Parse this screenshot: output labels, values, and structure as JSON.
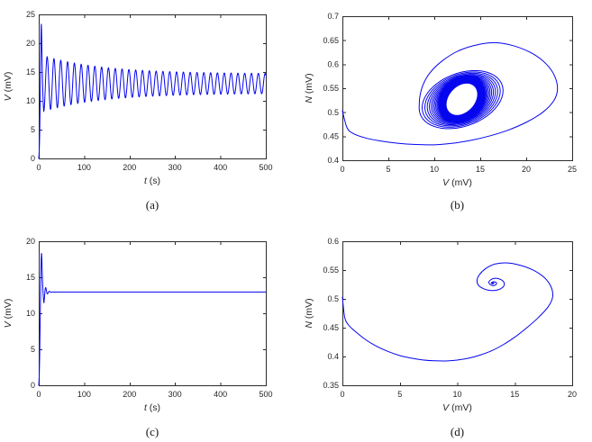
{
  "figure": {
    "background": "#ffffff",
    "line_color": "#0505ee",
    "axis_color": "#2b2b2b",
    "tick_label_color": "#262626",
    "caption_color": "#151515"
  },
  "chart_data": [
    {
      "caption": "(a)",
      "type": "line",
      "xlabel_var": "t",
      "xlabel_unit": " (s)",
      "ylabel_var": "V",
      "ylabel_unit": " (mV)",
      "xlim": [
        0,
        500
      ],
      "ylim": [
        0,
        25
      ],
      "xticks": [
        0,
        100,
        200,
        300,
        400,
        500
      ],
      "yticks": [
        0,
        5,
        10,
        15,
        20,
        25
      ],
      "grid": false,
      "legend": null,
      "key_points": {
        "start": [
          0,
          0
        ],
        "initial_peak": [
          6,
          23.3
        ],
        "first_minimum": [
          11,
          8.15
        ],
        "steady_mean_V": 13.0,
        "steady_oscillation_amplitude": 1.7,
        "oscillation_period_s": 15
      },
      "series": [
        {
          "name": "V(t) sustained oscillation",
          "segments": [
            {
              "type": "points",
              "pts": [
                [
                  0,
                  0
                ],
                [
                  1,
                  1.2
                ],
                [
                  2,
                  4
                ],
                [
                  3,
                  9.5
                ],
                [
                  4,
                  16
                ],
                [
                  5,
                  21.5
                ],
                [
                  5.7,
                  23.3
                ],
                [
                  6.5,
                  21
                ],
                [
                  7.5,
                  16.5
                ],
                [
                  8.8,
                  12
                ],
                [
                  10,
                  9.4
                ],
                [
                  11,
                  8.15
                ]
              ]
            },
            {
              "type": "osc",
              "t0": 11,
              "t1": 500,
              "dt": 0.75,
              "mean": 13.0,
              "a0": 4.85,
              "aInf": 1.7,
              "tau": 130,
              "period": 15,
              "phaseDeg": -90
            }
          ]
        }
      ]
    },
    {
      "caption": "(b)",
      "type": "line",
      "xlabel_var": "V",
      "xlabel_unit": " (mV)",
      "ylabel_var": "N",
      "ylabel_unit": " (mV)",
      "xlim": [
        0,
        25
      ],
      "ylim": [
        0.4,
        0.7
      ],
      "xticks": [
        0,
        5,
        10,
        15,
        20,
        25
      ],
      "yticks": [
        0.4,
        0.45,
        0.5,
        0.55,
        0.6,
        0.65,
        0.7
      ],
      "grid": false,
      "legend": null,
      "key_points": {
        "start": [
          0,
          0.5
        ],
        "max_V": 23.4,
        "max_N": 0.645,
        "min_N": 0.433,
        "limit_cycle_center": [
          13,
          0.527
        ],
        "limit_cycle_V_amplitude": 1.65
      },
      "series": [
        {
          "name": "phase portrait spiraling onto limit cycle",
          "segments": [
            {
              "type": "points",
              "pts": [
                [
                  0,
                  0.503
                ],
                [
                  0.5,
                  0.468
                ],
                [
                  1.2,
                  0.4555
                ],
                [
                  2.5,
                  0.4465
                ],
                [
                  4,
                  0.4405
                ],
                [
                  6,
                  0.4355
                ],
                [
                  8,
                  0.4328
                ],
                [
                  10,
                  0.4322
                ],
                [
                  12,
                  0.4355
                ],
                [
                  14,
                  0.4415
                ],
                [
                  16,
                  0.4505
                ],
                [
                  18,
                  0.4625
                ],
                [
                  20,
                  0.479
                ],
                [
                  21.8,
                  0.5
                ],
                [
                  23,
                  0.524
                ],
                [
                  23.4,
                  0.548
                ],
                [
                  23.1,
                  0.575
                ],
                [
                  22.2,
                  0.6
                ],
                [
                  20.7,
                  0.622
                ],
                [
                  18.7,
                  0.638
                ],
                [
                  16.8,
                  0.6448
                ],
                [
                  14.8,
                  0.641
                ],
                [
                  12.7,
                  0.6285
                ],
                [
                  10.9,
                  0.6075
                ],
                [
                  9.5,
                  0.5815
                ],
                [
                  8.75,
                  0.556
                ],
                [
                  8.42,
                  0.5315
                ],
                [
                  8.35,
                  0.5078
                ]
              ]
            },
            {
              "type": "spiral",
              "cx": 13,
              "cy": 0.527,
              "startDeg": 180,
              "turns": 33,
              "stepDeg": 7.5,
              "ax0": 4.65,
              "axInf": 1.65,
              "ay0": 0.062,
              "ayInf": 0.033,
              "tau": 130,
              "period": 15,
              "psiDeg": 18
            }
          ]
        }
      ]
    },
    {
      "caption": "(c)",
      "type": "line",
      "xlabel_var": "t",
      "xlabel_unit": " (s)",
      "ylabel_var": "V",
      "ylabel_unit": " (mV)",
      "xlim": [
        0,
        500
      ],
      "ylim": [
        0,
        20
      ],
      "xticks": [
        0,
        100,
        200,
        300,
        400,
        500
      ],
      "yticks": [
        0,
        5,
        10,
        15,
        20
      ],
      "grid": false,
      "legend": null,
      "key_points": {
        "start": [
          0,
          0
        ],
        "initial_peak": [
          6,
          18.3
        ],
        "first_minimum": [
          11.5,
          11.45
        ],
        "steady_state_V": 12.95
      },
      "series": [
        {
          "name": "V(t) damped to steady state",
          "segments": [
            {
              "type": "points",
              "pts": [
                [
                  0,
                  0
                ],
                [
                  1,
                  1.2
                ],
                [
                  2,
                  4
                ],
                [
                  3.5,
                  10.5
                ],
                [
                  5,
                  16.5
                ],
                [
                  6,
                  18.3
                ],
                [
                  7,
                  17.2
                ],
                [
                  8,
                  15
                ],
                [
                  9.5,
                  12.9
                ],
                [
                  10.7,
                  11.8
                ],
                [
                  11.5,
                  11.45
                ]
              ]
            },
            {
              "type": "osc",
              "t0": 11.5,
              "t1": 500,
              "dt": 0.75,
              "mean": 12.95,
              "a0": 1.5,
              "aInf": 0,
              "tau": 4.5,
              "period": 8,
              "phaseDeg": -90
            }
          ]
        }
      ]
    },
    {
      "caption": "(d)",
      "type": "line",
      "xlabel_var": "V",
      "xlabel_unit": " (mV)",
      "ylabel_var": "N",
      "ylabel_unit": " (mV)",
      "xlim": [
        0,
        20
      ],
      "ylim": [
        0.35,
        0.6
      ],
      "xticks": [
        0,
        5,
        10,
        15,
        20
      ],
      "yticks": [
        0.35,
        0.4,
        0.45,
        0.5,
        0.55,
        0.6
      ],
      "grid": false,
      "legend": null,
      "key_points": {
        "start": [
          0,
          0.5
        ],
        "min_N": 0.392,
        "max_V": 18.3,
        "max_N": 0.5625,
        "spiral_end_focus": [
          13.05,
          0.527
        ]
      },
      "series": [
        {
          "name": "phase portrait spiraling into stable focus",
          "segments": [
            {
              "type": "points",
              "pts": [
                [
                  0,
                  0.503
                ],
                [
                  0.2,
                  0.468
                ],
                [
                  0.5,
                  0.4555
                ],
                [
                  1,
                  0.4455
                ],
                [
                  2,
                  0.4295
                ],
                [
                  3,
                  0.4175
                ],
                [
                  4,
                  0.4085
                ],
                [
                  5,
                  0.4015
                ],
                [
                  6,
                  0.397
                ],
                [
                  7,
                  0.394
                ],
                [
                  8,
                  0.3925
                ],
                [
                  9,
                  0.3922
                ],
                [
                  10,
                  0.3938
                ],
                [
                  11,
                  0.397
                ],
                [
                  12,
                  0.4025
                ],
                [
                  13,
                  0.41
                ],
                [
                  14,
                  0.4205
                ],
                [
                  15,
                  0.4335
                ],
                [
                  16,
                  0.449
                ],
                [
                  17,
                  0.4665
                ],
                [
                  17.9,
                  0.486
                ],
                [
                  18.3,
                  0.5035
                ],
                [
                  18.15,
                  0.5215
                ],
                [
                  17.55,
                  0.5375
                ],
                [
                  16.55,
                  0.5505
                ],
                [
                  15.35,
                  0.559
                ],
                [
                  14.25,
                  0.5625
                ],
                [
                  13.3,
                  0.5605
                ],
                [
                  12.5,
                  0.553
                ],
                [
                  11.95,
                  0.5425
                ],
                [
                  11.72,
                  0.5325
                ],
                [
                  11.85,
                  0.5235
                ],
                [
                  12.3,
                  0.5175
                ],
                [
                  12.9,
                  0.5145
                ],
                [
                  13.5,
                  0.5155
                ],
                [
                  13.95,
                  0.52
                ],
                [
                  14.1,
                  0.526
                ],
                [
                  13.95,
                  0.5315
                ],
                [
                  13.6,
                  0.535
                ],
                [
                  13.2,
                  0.5355
                ],
                [
                  12.9,
                  0.533
                ],
                [
                  12.75,
                  0.5295
                ],
                [
                  12.8,
                  0.526
                ],
                [
                  13.0,
                  0.5235
                ],
                [
                  13.25,
                  0.5235
                ],
                [
                  13.42,
                  0.526
                ],
                [
                  13.35,
                  0.5288
                ],
                [
                  13.15,
                  0.5296
                ],
                [
                  13.0,
                  0.5285
                ],
                [
                  12.96,
                  0.527
                ],
                [
                  13.05,
                  0.5262
                ],
                [
                  13.15,
                  0.5266
                ],
                [
                  13.18,
                  0.5275
                ],
                [
                  13.1,
                  0.528
                ],
                [
                  13.05,
                  0.5276
                ]
              ]
            }
          ]
        }
      ]
    }
  ]
}
